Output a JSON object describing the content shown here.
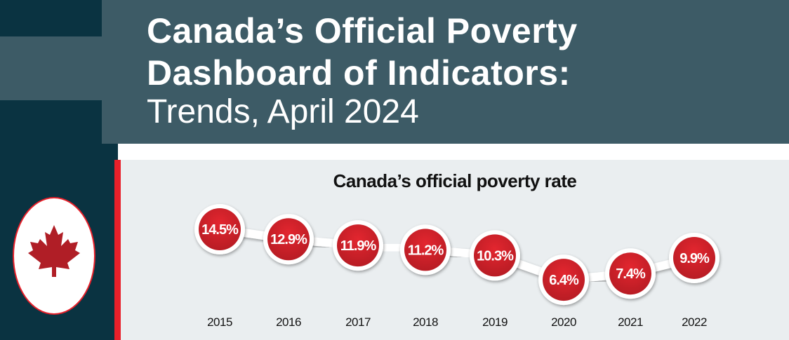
{
  "header": {
    "title_line1": "Canada’s Official Poverty",
    "title_line2": "Dashboard of Indicators:",
    "subtitle": "Trends, April 2024"
  },
  "colors": {
    "dark_teal": "#0a3341",
    "slate": "#3d5b66",
    "red": "#e8202a",
    "panel": "#eaeef0"
  },
  "emblem_icon": "maple-leaf-icon",
  "chart_data": {
    "type": "line",
    "title": "Canada’s official poverty rate",
    "categories": [
      "2015",
      "2016",
      "2017",
      "2018",
      "2019",
      "2020",
      "2021",
      "2022"
    ],
    "values": [
      14.5,
      12.9,
      11.9,
      11.2,
      10.3,
      6.4,
      7.4,
      9.9
    ],
    "labels": [
      "14.5%",
      "12.9%",
      "11.9%",
      "11.2%",
      "10.3%",
      "6.4%",
      "7.4%",
      "9.9%"
    ],
    "unit": "%"
  }
}
